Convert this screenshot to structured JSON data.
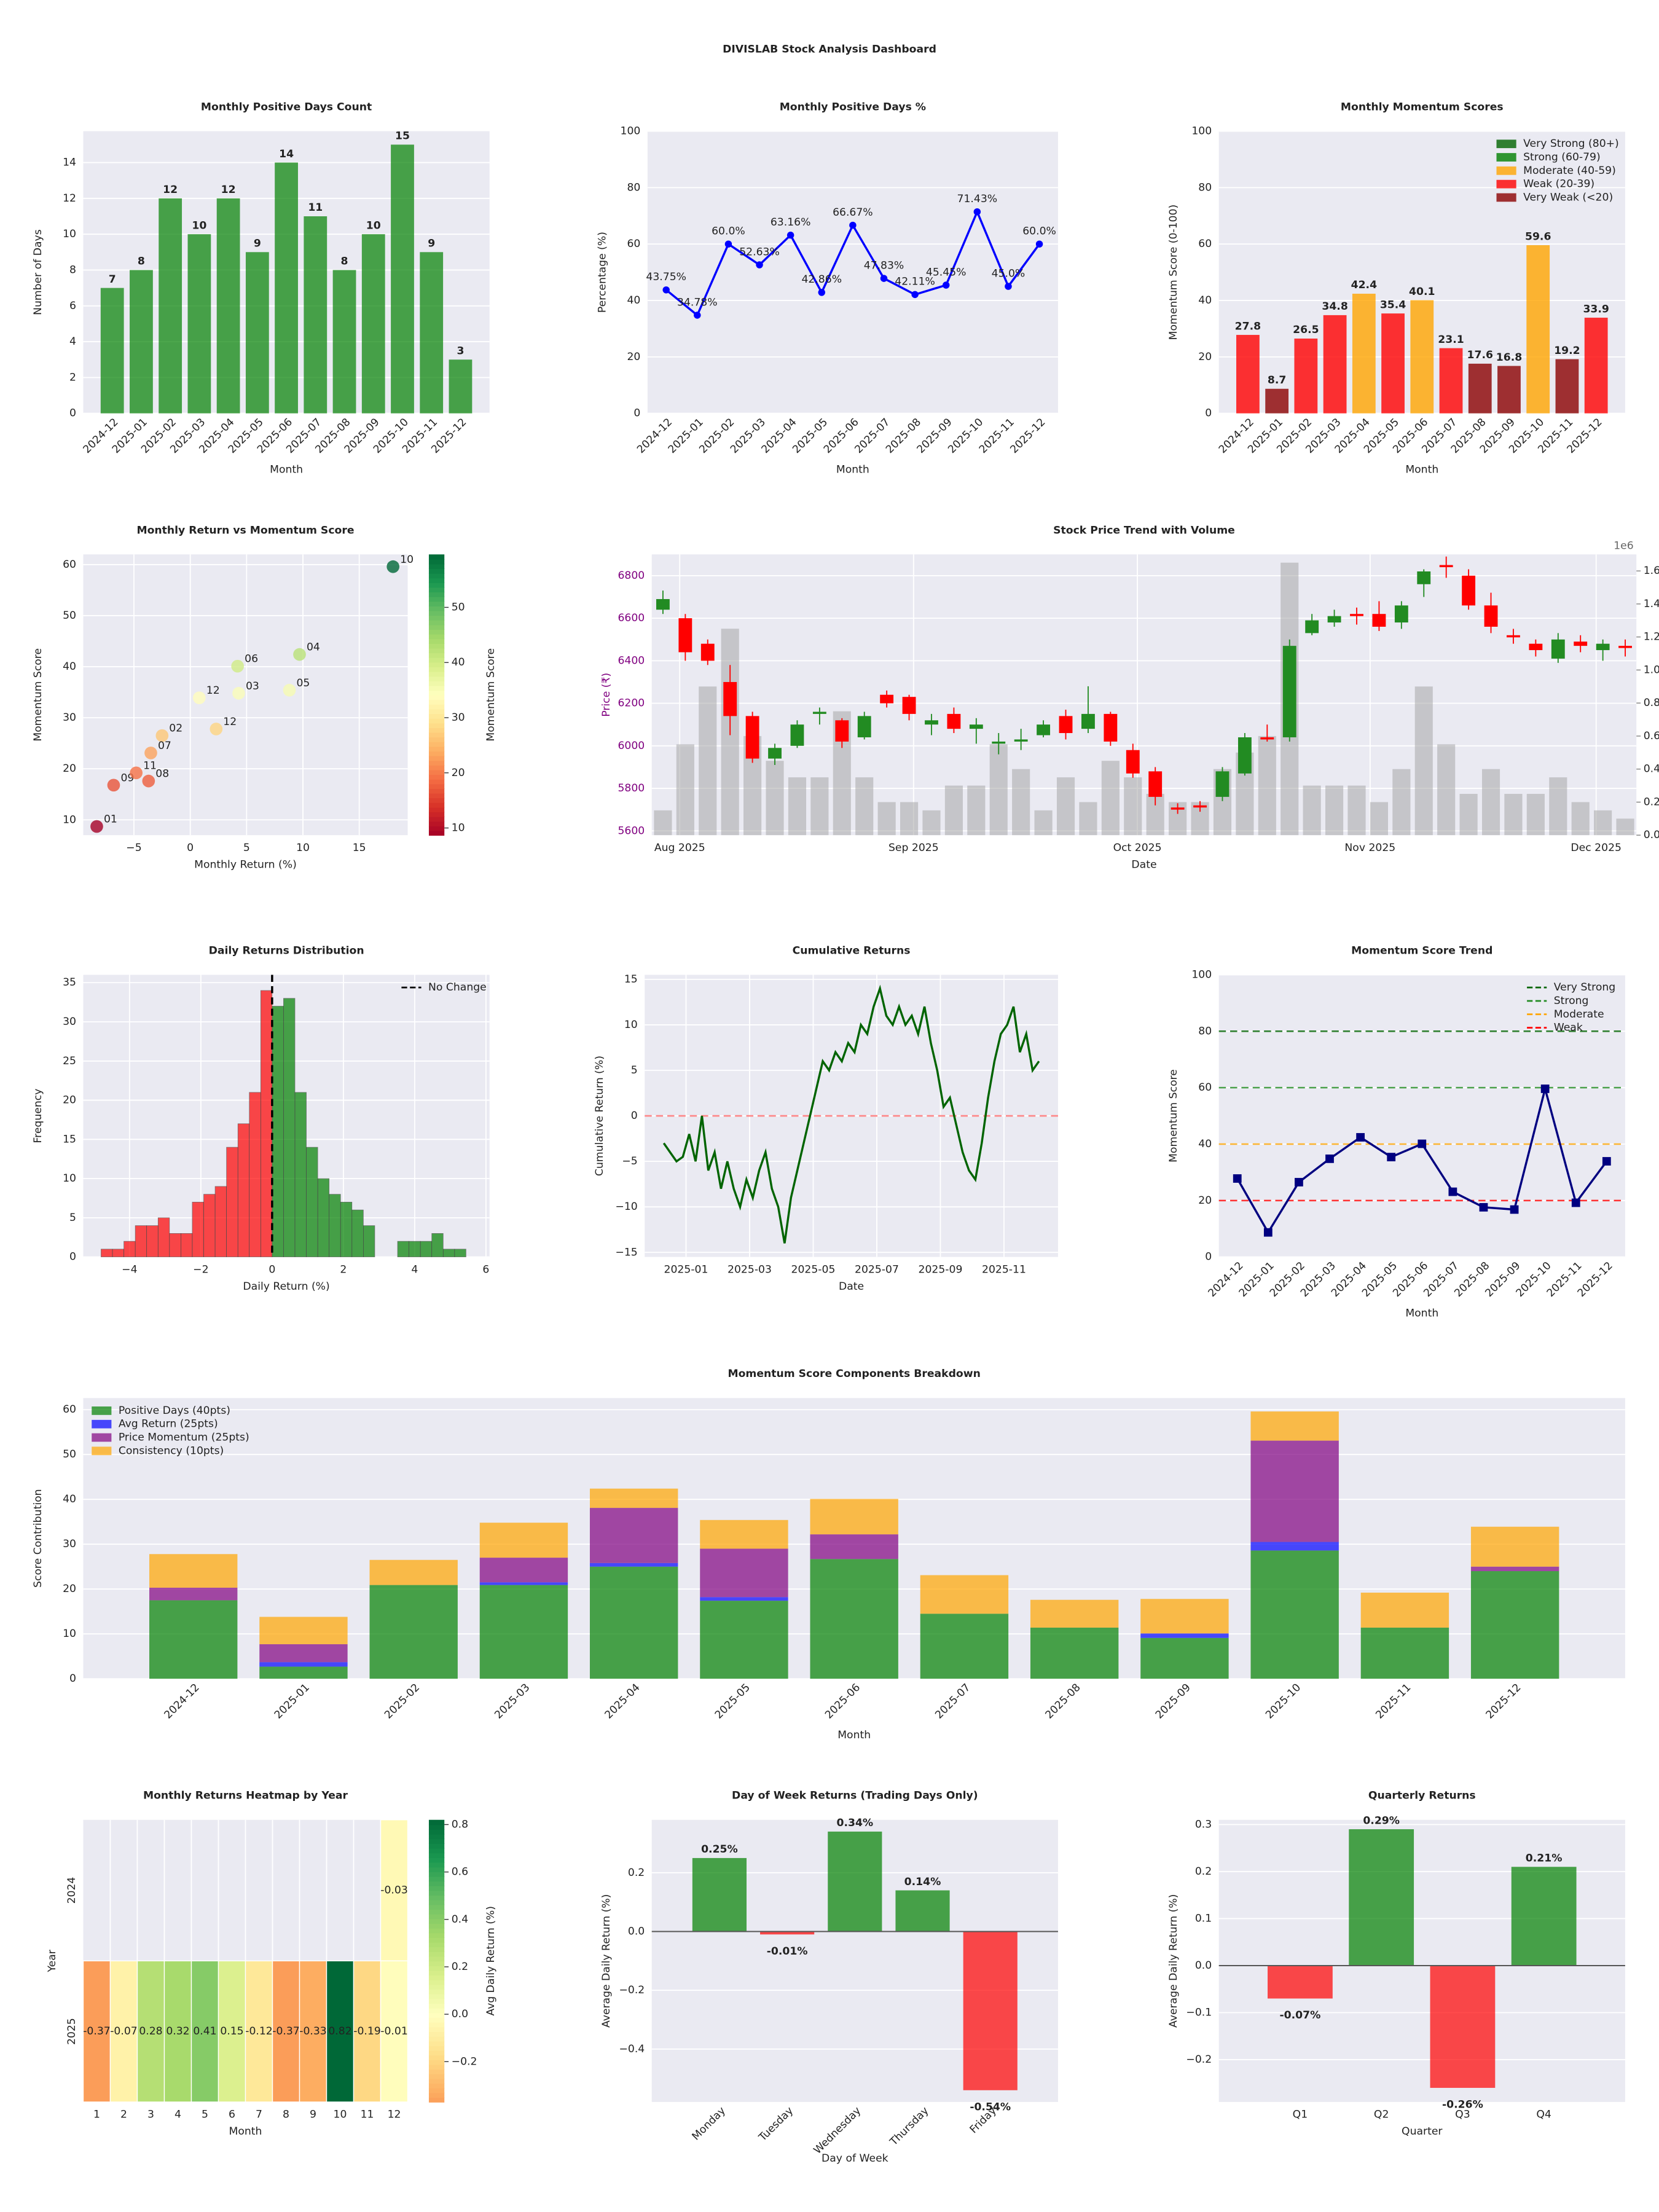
{
  "title": "DIVISLAB Stock Analysis Dashboard",
  "chart_data": [
    {
      "type": "bar",
      "title": "Monthly Positive Days Count",
      "xlabel": "Month",
      "ylabel": "Number of Days",
      "categories": [
        "2024-12",
        "2025-01",
        "2025-02",
        "2025-03",
        "2025-04",
        "2025-05",
        "2025-06",
        "2025-07",
        "2025-08",
        "2025-09",
        "2025-10",
        "2025-11",
        "2025-12"
      ],
      "values": [
        7,
        8,
        12,
        10,
        12,
        9,
        14,
        11,
        8,
        10,
        15,
        9,
        3
      ],
      "color": "#008000",
      "opacity": 0.7,
      "show_values": true,
      "ylim": [
        0,
        15.75
      ],
      "yticks": [
        0,
        2,
        4,
        6,
        8,
        10,
        12,
        14
      ],
      "grid": true,
      "xtick_rotation": 45
    },
    {
      "type": "line",
      "title": "Monthly Positive Days %",
      "xlabel": "Month",
      "ylabel": "Percentage (%)",
      "categories": [
        "2024-12",
        "2025-01",
        "2025-02",
        "2025-03",
        "2025-04",
        "2025-05",
        "2025-06",
        "2025-07",
        "2025-08",
        "2025-09",
        "2025-10",
        "2025-11",
        "2025-12"
      ],
      "values": [
        43.75,
        34.78,
        60.0,
        52.63,
        63.16,
        42.86,
        66.67,
        47.83,
        42.11,
        45.45,
        71.43,
        45.0,
        60.0
      ],
      "value_labels": [
        "43.75%",
        "34.78%",
        "60.0%",
        "52.63%",
        "63.16%",
        "42.86%",
        "66.67%",
        "47.83%",
        "42.11%",
        "45.45%",
        "71.43%",
        "45.0%",
        "60.0%"
      ],
      "color": "#0000ff",
      "marker": "circle",
      "ylim": [
        0,
        100
      ],
      "yticks": [
        0,
        20,
        40,
        60,
        80,
        100
      ],
      "grid": true,
      "xtick_rotation": 45
    },
    {
      "type": "bar",
      "title": "Monthly Momentum Scores",
      "xlabel": "Month",
      "ylabel": "Momentum Score (0-100)",
      "categories": [
        "2024-12",
        "2025-01",
        "2025-02",
        "2025-03",
        "2025-04",
        "2025-05",
        "2025-06",
        "2025-07",
        "2025-08",
        "2025-09",
        "2025-10",
        "2025-11",
        "2025-12"
      ],
      "values": [
        27.8,
        8.7,
        26.5,
        34.8,
        42.4,
        35.4,
        40.1,
        23.1,
        17.6,
        16.8,
        59.6,
        19.2,
        33.9
      ],
      "colors": [
        "#ff0000",
        "#8b0000",
        "#ff0000",
        "#ff0000",
        "#ffa500",
        "#ff0000",
        "#ffa500",
        "#ff0000",
        "#8b0000",
        "#8b0000",
        "#ffa500",
        "#8b0000",
        "#ff0000"
      ],
      "opacity": 0.8,
      "show_values": true,
      "legend": [
        {
          "name": "Very Strong (80+)",
          "color": "#006400"
        },
        {
          "name": "Strong (60-79)",
          "color": "#008000"
        },
        {
          "name": "Moderate (40-59)",
          "color": "#ffa500"
        },
        {
          "name": "Weak (20-39)",
          "color": "#ff0000"
        },
        {
          "name": "Very Weak (<20)",
          "color": "#8b0000"
        }
      ],
      "legend_position": "upper right",
      "ylim": [
        0,
        100
      ],
      "yticks": [
        0,
        20,
        40,
        60,
        80,
        100
      ],
      "grid": true,
      "xtick_rotation": 45
    },
    {
      "type": "scatter",
      "title": "Monthly Return vs Momentum Score",
      "xlabel": "Monthly Return (%)",
      "ylabel": "Momentum Score",
      "x": [
        2.3,
        -8.3,
        -2.5,
        4.3,
        9.7,
        8.8,
        4.2,
        -3.5,
        -3.7,
        -6.8,
        18.0,
        -4.8,
        0.8
      ],
      "y": [
        27.8,
        8.7,
        26.5,
        34.8,
        42.4,
        35.4,
        40.1,
        23.1,
        17.6,
        16.8,
        59.6,
        19.2,
        33.9
      ],
      "labels": [
        "12",
        "01",
        "02",
        "03",
        "04",
        "05",
        "06",
        "07",
        "08",
        "09",
        "10",
        "11",
        "12"
      ],
      "colormap": "RdYlGn",
      "clim": [
        8.7,
        59.6
      ],
      "cbar_label": "Momentum Score",
      "cbar_ticks": [
        10,
        20,
        30,
        40,
        50
      ],
      "xlim": [
        -9.5,
        19.3
      ],
      "xticks": [
        {
          "value": -5,
          "label": "−5"
        },
        0,
        5,
        10,
        15
      ],
      "ylim": [
        7,
        62
      ],
      "yticks": [
        10,
        20,
        30,
        40,
        50,
        60
      ],
      "grid": true
    },
    {
      "type": "candlestick",
      "title": "Stock Price Trend with Volume",
      "xlabel": "Date",
      "ylabel": "Price (₹)",
      "ylabel_color": "#800080",
      "open": [
        6640,
        6600,
        6480,
        6300,
        6140,
        5940,
        6000,
        6150,
        6120,
        6040,
        6240,
        6230,
        6100,
        6150,
        6080,
        6010,
        6020,
        6050,
        6140,
        6080,
        6150,
        5980,
        5880,
        5710,
        5720,
        5760,
        5870,
        6040,
        6040,
        6530,
        6580,
        6620,
        6620,
        6580,
        6760,
        6850,
        6800,
        6660,
        6520,
        6480,
        6410,
        6490,
        6450,
        6470
      ],
      "high": [
        6730,
        6620,
        6500,
        6380,
        6160,
        6010,
        6120,
        6180,
        6130,
        6160,
        6260,
        6240,
        6150,
        6180,
        6130,
        6060,
        6080,
        6120,
        6170,
        6280,
        6160,
        6010,
        5900,
        5730,
        5740,
        5900,
        6060,
        6100,
        6500,
        6620,
        6640,
        6650,
        6680,
        6680,
        6830,
        6890,
        6830,
        6720,
        6550,
        6500,
        6530,
        6520,
        6500,
        6500
      ],
      "low": [
        6620,
        6400,
        6380,
        6050,
        5920,
        5910,
        5990,
        6100,
        5990,
        6030,
        6180,
        6120,
        6050,
        6060,
        6010,
        5960,
        5980,
        6040,
        6030,
        6060,
        6000,
        5850,
        5720,
        5680,
        5690,
        5740,
        5860,
        6020,
        6020,
        6520,
        6560,
        6570,
        6540,
        6550,
        6700,
        6790,
        6640,
        6530,
        6480,
        6420,
        6390,
        6440,
        6400,
        6420
      ],
      "close": [
        6690,
        6440,
        6400,
        6140,
        5940,
        5990,
        6100,
        6160,
        6020,
        6140,
        6200,
        6150,
        6120,
        6080,
        6100,
        6020,
        6030,
        6100,
        6060,
        6150,
        6020,
        5870,
        5760,
        5700,
        5710,
        5880,
        6040,
        6030,
        6470,
        6590,
        6610,
        6610,
        6560,
        6660,
        6820,
        6840,
        6660,
        6560,
        6510,
        6450,
        6500,
        6470,
        6480,
        6460
      ],
      "volume": [
        0.15,
        0.55,
        0.9,
        1.25,
        0.6,
        0.45,
        0.35,
        0.35,
        0.75,
        0.35,
        0.2,
        0.2,
        0.15,
        0.3,
        0.3,
        0.55,
        0.4,
        0.15,
        0.35,
        0.2,
        0.45,
        0.35,
        0.25,
        0.2,
        0.2,
        0.4,
        0.5,
        0.6,
        1.65,
        0.3,
        0.3,
        0.3,
        0.2,
        0.4,
        0.9,
        0.55,
        0.25,
        0.4,
        0.25,
        0.25,
        0.35,
        0.2,
        0.15,
        0.1
      ],
      "up_color": "#228b22",
      "down_color": "#ff0000",
      "volume_color": "#a0a0a0",
      "xlim": [
        -0.5,
        43.5
      ],
      "xticks": [
        {
          "value": 0.75,
          "label": "Aug 2025"
        },
        {
          "value": 11.2,
          "label": "Sep 2025"
        },
        {
          "value": 21.2,
          "label": "Oct 2025"
        },
        {
          "value": 31.6,
          "label": "Nov 2025"
        },
        {
          "value": 41.7,
          "label": "Dec 2025"
        }
      ],
      "ylim": [
        5580,
        6900
      ],
      "yticks": [
        5600,
        5800,
        6000,
        6200,
        6400,
        6600,
        6800
      ],
      "y2lim": [
        0,
        1.7
      ],
      "y2ticks": [
        {
          "value": 0,
          "label": "0.0"
        },
        0.2,
        0.4,
        0.6,
        0.8,
        {
          "value": 1,
          "label": "1.0"
        },
        1.2,
        1.4,
        1.6
      ],
      "y2_offset_label": "1e6",
      "grid": true
    },
    {
      "type": "histogram",
      "title": "Daily Returns Distribution",
      "xlabel": "Daily Return (%)",
      "ylabel": "Frequency",
      "bins": [
        -4.8,
        -4.48,
        -4.16,
        -3.84,
        -3.52,
        -3.2,
        -2.88,
        -2.56,
        -2.24,
        -1.92,
        -1.6,
        -1.28,
        -0.96,
        -0.64,
        -0.32,
        0,
        0.32,
        0.64,
        0.96,
        1.28,
        1.6,
        1.92,
        2.24,
        2.56,
        2.88,
        3.2,
        3.52,
        3.84,
        4.16,
        4.48,
        4.8,
        5.12,
        5.44
      ],
      "counts": [
        1,
        1,
        2,
        4,
        4,
        5,
        3,
        3,
        7,
        8,
        9,
        14,
        17,
        21,
        34,
        32,
        33,
        21,
        14,
        10,
        8,
        7,
        6,
        4,
        0,
        0,
        2,
        2,
        2,
        3,
        1,
        1
      ],
      "positive_color": "#008000",
      "negative_color": "#ff0000",
      "opacity": 0.7,
      "vline": {
        "value": 0,
        "name": "No Change",
        "color": "#000000"
      },
      "legend_position": "upper right",
      "xlim": [
        -5.3,
        6.1
      ],
      "xticks": [
        {
          "value": -4,
          "label": "−4"
        },
        {
          "value": -2,
          "label": "−2"
        },
        0,
        2,
        4,
        6
      ],
      "ylim": [
        0,
        36
      ],
      "yticks": [
        0,
        5,
        10,
        15,
        20,
        25,
        30,
        35
      ],
      "grid": true
    },
    {
      "type": "line",
      "title": "Cumulative Returns",
      "xlabel": "Date",
      "ylabel": "Cumulative Return (%)",
      "values": [
        -3,
        -4,
        -5,
        -4.5,
        -2,
        -5,
        0,
        -6,
        -4,
        -8,
        -5,
        -8,
        -10,
        -7,
        -9,
        -6,
        -4,
        -8,
        -10,
        -14,
        -9,
        -6,
        -3,
        0,
        3,
        6,
        5,
        7,
        6,
        8,
        7,
        10,
        9,
        12,
        14,
        11,
        10,
        12,
        10,
        11,
        9,
        12,
        8,
        5,
        1,
        2,
        -1,
        -4,
        -6,
        -7,
        -3,
        2,
        6,
        9,
        10,
        12,
        7,
        9,
        5,
        6
      ],
      "color": "#006400",
      "reference_lines": [
        {
          "value": 0,
          "color": "#ff6b6b"
        }
      ],
      "xlim": [
        -3,
        62
      ],
      "xticks": [
        {
          "value": 3.5,
          "label": "2025-01"
        },
        {
          "value": 13.5,
          "label": "2025-03"
        },
        {
          "value": 23.5,
          "label": "2025-05"
        },
        {
          "value": 33.5,
          "label": "2025-07"
        },
        {
          "value": 43.5,
          "label": "2025-09"
        },
        {
          "value": 53.5,
          "label": "2025-11"
        }
      ],
      "ylim": [
        -15.5,
        15.5
      ],
      "yticks": [
        {
          "value": -15,
          "label": "−15"
        },
        {
          "value": -10,
          "label": "−10"
        },
        {
          "value": -5,
          "label": "−5"
        },
        0,
        5,
        10,
        15
      ],
      "grid": true
    },
    {
      "type": "line",
      "title": "Momentum Score Trend",
      "xlabel": "Month",
      "ylabel": "Momentum Score",
      "categories": [
        "2024-12",
        "2025-01",
        "2025-02",
        "2025-03",
        "2025-04",
        "2025-05",
        "2025-06",
        "2025-07",
        "2025-08",
        "2025-09",
        "2025-10",
        "2025-11",
        "2025-12"
      ],
      "values": [
        27.8,
        8.7,
        26.5,
        34.8,
        42.4,
        35.4,
        40.1,
        23.1,
        17.6,
        16.8,
        59.6,
        19.2,
        33.9
      ],
      "color": "#000080",
      "marker": "square",
      "reference_lines": [
        {
          "name": "Very Strong",
          "value": 80,
          "color": "#006400"
        },
        {
          "name": "Strong",
          "value": 60,
          "color": "#228b22"
        },
        {
          "name": "Moderate",
          "value": 40,
          "color": "#ffa500"
        },
        {
          "name": "Weak",
          "value": 20,
          "color": "#ff0000"
        }
      ],
      "legend_position": "upper right",
      "ylim": [
        0,
        100
      ],
      "yticks": [
        0,
        20,
        40,
        60,
        80,
        100
      ],
      "grid": true,
      "xtick_rotation": 45
    },
    {
      "type": "stacked_bar",
      "title": "Momentum Score Components Breakdown",
      "xlabel": "Month",
      "ylabel": "Score Contribution",
      "categories": [
        "2024-12",
        "2025-01",
        "2025-02",
        "2025-03",
        "2025-04",
        "2025-05",
        "2025-06",
        "2025-07",
        "2025-08",
        "2025-09",
        "2025-10",
        "2025-11",
        "2025-12"
      ],
      "series": [
        {
          "name": "Positive Days (40pts)",
          "color": "#008000",
          "values": [
            17.5,
            2.7,
            20.9,
            20.9,
            25.0,
            17.4,
            26.7,
            14.5,
            11.4,
            9.1,
            28.6,
            11.4,
            24.0
          ]
        },
        {
          "name": "Avg Return (25pts)",
          "color": "#0000ff",
          "values": [
            0,
            1.0,
            0,
            0.6,
            0.8,
            0.8,
            0,
            0,
            0,
            1.0,
            1.9,
            0,
            0
          ]
        },
        {
          "name": "Price Momentum (25pts)",
          "color": "#800080",
          "values": [
            2.8,
            4.0,
            0,
            5.5,
            12.3,
            10.8,
            5.5,
            0,
            0,
            0,
            22.6,
            0,
            1.0
          ]
        },
        {
          "name": "Consistency (10pts)",
          "color": "#ffa500",
          "values": [
            7.5,
            6.1,
            5.6,
            7.8,
            4.3,
            6.4,
            7.9,
            8.6,
            6.2,
            7.7,
            6.5,
            7.8,
            8.9
          ]
        }
      ],
      "opacity": 0.7,
      "legend_position": "upper left",
      "ylim": [
        0,
        62.6
      ],
      "yticks": [
        0,
        10,
        20,
        30,
        40,
        50,
        60
      ],
      "grid": true,
      "xtick_rotation": 45
    },
    {
      "type": "heatmap",
      "title": "Monthly Returns Heatmap by Year",
      "xlabel": "Month",
      "ylabel": "Year",
      "x_categories": [
        1,
        2,
        3,
        4,
        5,
        6,
        7,
        8,
        9,
        10,
        11,
        12
      ],
      "y_categories": [
        "2024",
        "2025"
      ],
      "values": [
        [
          null,
          null,
          null,
          null,
          null,
          null,
          null,
          null,
          null,
          null,
          null,
          -0.03
        ],
        [
          -0.37,
          -0.07,
          0.28,
          0.32,
          0.41,
          0.15,
          -0.12,
          -0.37,
          -0.33,
          0.82,
          -0.19,
          -0.01
        ]
      ],
      "colormap": "RdYlGn",
      "center": 0,
      "clim": [
        -0.37,
        0.82
      ],
      "cbar_label": "Avg Daily Return (%)",
      "cbar_ticks": [
        {
          "value": -0.2,
          "label": "−0.2"
        },
        {
          "value": 0,
          "label": "0.0"
        },
        0.2,
        0.4,
        0.6,
        0.8
      ]
    },
    {
      "type": "bar",
      "title": "Day of Week Returns (Trading Days Only)",
      "xlabel": "Day of Week",
      "ylabel": "Average Daily Return (%)",
      "categories": [
        "Monday",
        "Tuesday",
        "Wednesday",
        "Thursday",
        "Friday"
      ],
      "values": [
        0.25,
        -0.01,
        0.34,
        0.14,
        -0.54
      ],
      "value_labels": [
        "0.25%",
        "-0.01%",
        "0.34%",
        "0.14%",
        "-0.54%"
      ],
      "positive_color": "#008000",
      "negative_color": "#ff0000",
      "opacity": 0.7,
      "show_values": true,
      "zero_line": true,
      "ylim": [
        -0.58,
        0.38
      ],
      "yticks": [
        {
          "value": -0.4,
          "label": "−0.4"
        },
        {
          "value": -0.2,
          "label": "−0.2"
        },
        {
          "value": 0,
          "label": "0.0"
        },
        0.2
      ],
      "grid": true,
      "xtick_rotation": 45
    },
    {
      "type": "bar",
      "title": "Quarterly Returns",
      "xlabel": "Quarter",
      "ylabel": "Average Daily Return (%)",
      "categories": [
        "Q1",
        "Q2",
        "Q3",
        "Q4"
      ],
      "values": [
        -0.07,
        0.29,
        -0.26,
        0.21
      ],
      "value_labels": [
        "-0.07%",
        "0.29%",
        "-0.26%",
        "0.21%"
      ],
      "positive_color": "#008000",
      "negative_color": "#ff0000",
      "opacity": 0.7,
      "show_values": true,
      "zero_line": true,
      "ylim": [
        -0.29,
        0.31
      ],
      "yticks": [
        {
          "value": -0.2,
          "label": "−0.2"
        },
        {
          "value": -0.1,
          "label": "−0.1"
        },
        {
          "value": 0,
          "label": "0.0"
        },
        0.1,
        0.2,
        0.3
      ],
      "grid": true
    }
  ]
}
